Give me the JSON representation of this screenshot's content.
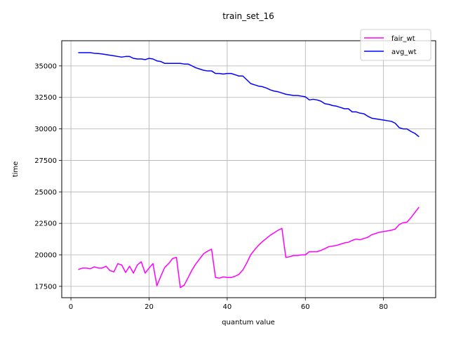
{
  "chart_data": {
    "type": "line",
    "title": "train_set_16",
    "xlabel": "quantum value",
    "ylabel": "time",
    "xlim": [
      -2.35,
      93.35
    ],
    "ylim": [
      16600,
      37000
    ],
    "xticks": [
      0,
      20,
      40,
      60,
      80
    ],
    "yticks": [
      17500,
      20000,
      22500,
      25000,
      27500,
      30000,
      32500,
      35000
    ],
    "ytick_labels": [
      "17500",
      "20000",
      "22500",
      "25000",
      "27500",
      "30000",
      "32500",
      "35000"
    ],
    "xtick_labels": [
      "0",
      "20",
      "40",
      "60",
      "80"
    ],
    "grid": true,
    "legend": "upper right",
    "series": [
      {
        "name": "fair_wt",
        "color": "#ff00ff",
        "x": [
          2,
          3,
          4,
          5,
          6,
          7,
          8,
          9,
          10,
          11,
          12,
          13,
          14,
          15,
          16,
          17,
          18,
          19,
          20,
          21,
          22,
          23,
          24,
          25,
          26,
          27,
          28,
          29,
          30,
          31,
          32,
          33,
          34,
          35,
          36,
          37,
          38,
          39,
          40,
          41,
          42,
          43,
          44,
          45,
          46,
          47,
          48,
          49,
          50,
          51,
          52,
          53,
          54,
          55,
          56,
          57,
          58,
          59,
          60,
          61,
          62,
          63,
          64,
          65,
          66,
          67,
          68,
          69,
          70,
          71,
          72,
          73,
          74,
          75,
          76,
          77,
          78,
          79,
          80,
          81,
          82,
          83,
          84,
          85,
          86,
          87,
          88,
          89
        ],
        "y": [
          18850,
          18950,
          18950,
          18900,
          19050,
          18950,
          18950,
          19100,
          18750,
          18650,
          19300,
          19200,
          18600,
          19100,
          18550,
          19200,
          19450,
          18550,
          18950,
          19300,
          17550,
          18300,
          19000,
          19300,
          19700,
          19800,
          17400,
          17600,
          18200,
          18800,
          19300,
          19700,
          20100,
          20300,
          20450,
          18200,
          18150,
          18250,
          18200,
          18200,
          18300,
          18450,
          18800,
          19350,
          20000,
          20400,
          20750,
          21050,
          21300,
          21550,
          21750,
          21950,
          22100,
          19800,
          19850,
          19950,
          19950,
          20000,
          20000,
          20250,
          20250,
          20250,
          20350,
          20500,
          20650,
          20700,
          20750,
          20850,
          20950,
          21000,
          21150,
          21250,
          21200,
          21300,
          21400,
          21600,
          21700,
          21800,
          21850,
          21900,
          21950,
          22050,
          22400,
          22550,
          22600,
          22950,
          23350,
          23750
        ]
      },
      {
        "name": "avg_wt",
        "color": "#0000ff",
        "x": [
          2,
          3,
          4,
          5,
          6,
          7,
          8,
          9,
          10,
          11,
          12,
          13,
          14,
          15,
          16,
          17,
          18,
          19,
          20,
          21,
          22,
          23,
          24,
          25,
          26,
          27,
          28,
          29,
          30,
          31,
          32,
          33,
          34,
          35,
          36,
          37,
          38,
          39,
          40,
          41,
          42,
          43,
          44,
          45,
          46,
          47,
          48,
          49,
          50,
          51,
          52,
          53,
          54,
          55,
          56,
          57,
          58,
          59,
          60,
          61,
          62,
          63,
          64,
          65,
          66,
          67,
          68,
          69,
          70,
          71,
          72,
          73,
          74,
          75,
          76,
          77,
          78,
          79,
          80,
          81,
          82,
          83,
          84,
          85,
          86,
          87,
          88,
          89
        ],
        "y": [
          36050,
          36050,
          36050,
          36050,
          36000,
          35980,
          35950,
          35900,
          35850,
          35800,
          35750,
          35700,
          35750,
          35750,
          35600,
          35550,
          35550,
          35500,
          35600,
          35550,
          35400,
          35350,
          35200,
          35200,
          35200,
          35200,
          35200,
          35150,
          35150,
          35000,
          34850,
          34750,
          34650,
          34600,
          34600,
          34400,
          34400,
          34350,
          34400,
          34400,
          34300,
          34200,
          34200,
          33900,
          33600,
          33500,
          33400,
          33350,
          33250,
          33100,
          33000,
          32950,
          32850,
          32750,
          32700,
          32650,
          32650,
          32600,
          32550,
          32300,
          32350,
          32300,
          32200,
          32000,
          31950,
          31850,
          31800,
          31700,
          31600,
          31600,
          31350,
          31350,
          31250,
          31200,
          31000,
          30850,
          30800,
          30750,
          30700,
          30650,
          30600,
          30450,
          30100,
          30000,
          30000,
          29800,
          29650,
          29400
        ]
      }
    ]
  }
}
